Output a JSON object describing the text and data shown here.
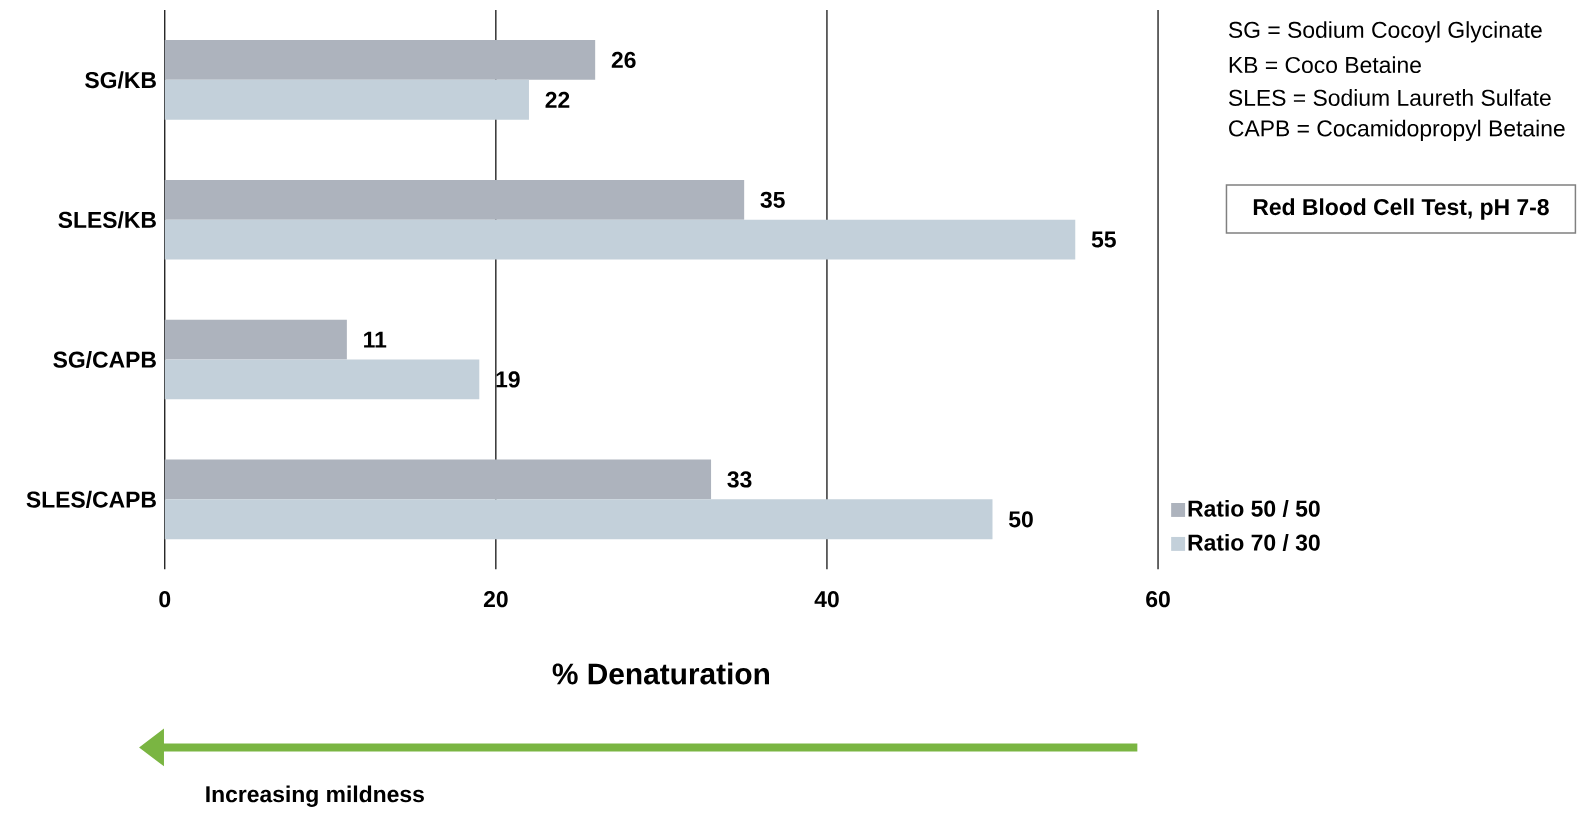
{
  "chart_data": {
    "type": "bar",
    "orientation": "horizontal",
    "xlabel": "% Denaturation",
    "categories": [
      "SG/KB",
      "SLES/KB",
      "SG/CAPB",
      "SLES/CAPB"
    ],
    "series": [
      {
        "name": "Ratio 50 / 50",
        "color": "#adb3bd",
        "values": [
          26,
          35,
          11,
          33
        ]
      },
      {
        "name": "Ratio 70 / 30",
        "color": "#c3d0da",
        "values": [
          22,
          55,
          19,
          50
        ]
      }
    ],
    "xlim": [
      0,
      60
    ],
    "xticks": [
      0,
      20,
      40,
      60
    ],
    "grid": "x",
    "data_labels": true,
    "legend": "bottom right",
    "annotations": [
      "SG = Sodium Cocoyl Glycinate",
      "KB = Coco Betaine",
      "SLES = Sodium Laureth Sulfate",
      "CAPB = Cocamidopropyl Betaine",
      "Red Blood Cell Test, pH 7-8",
      "Increasing mildness"
    ]
  }
}
